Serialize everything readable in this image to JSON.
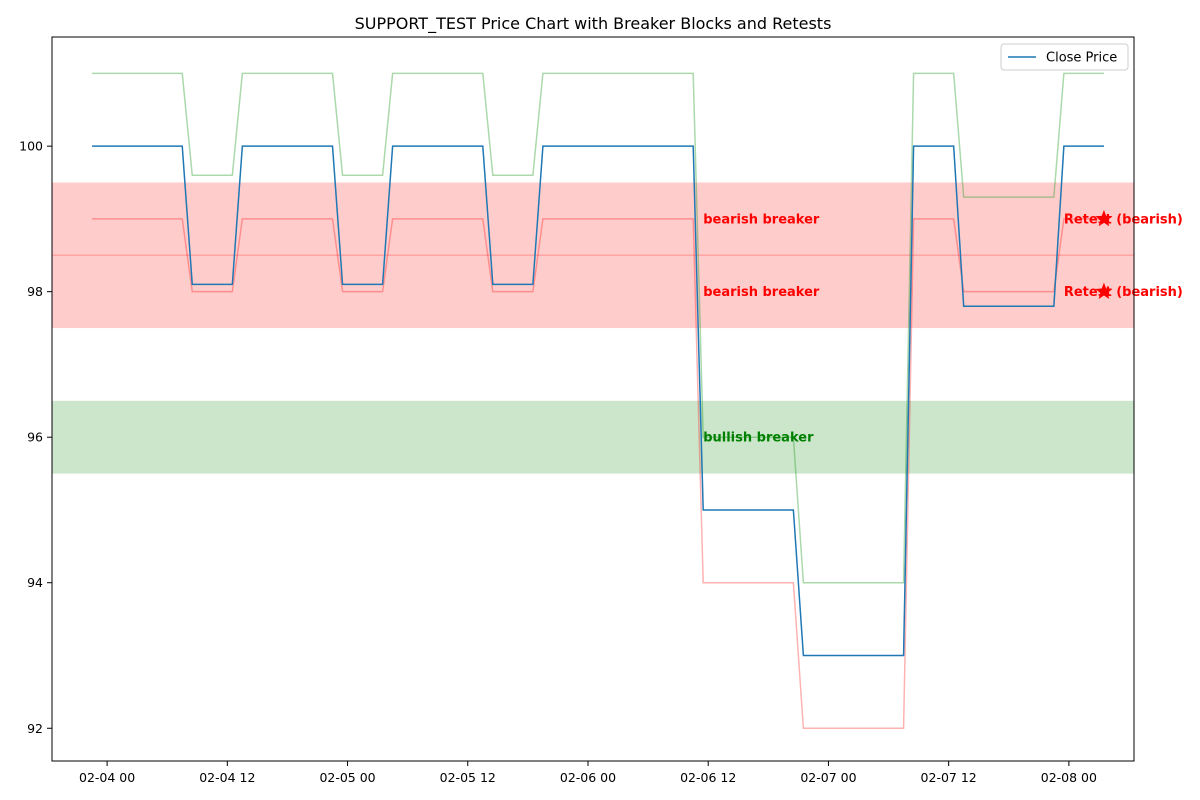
{
  "chart_data": {
    "type": "line",
    "title": "SUPPORT_TEST Price Chart with Breaker Blocks and Retests",
    "xlabel": "",
    "ylabel": "",
    "xlim": [
      "2024-02-03T18:30",
      "2024-02-08T06:30"
    ],
    "ylim": [
      91.55,
      101.5
    ],
    "x_ticks": [
      {
        "t": "2024-02-04T00:00",
        "label": "02-04 00"
      },
      {
        "t": "2024-02-04T12:00",
        "label": "02-04 12"
      },
      {
        "t": "2024-02-05T00:00",
        "label": "02-05 00"
      },
      {
        "t": "2024-02-05T12:00",
        "label": "02-05 12"
      },
      {
        "t": "2024-02-06T00:00",
        "label": "02-06 00"
      },
      {
        "t": "2024-02-06T12:00",
        "label": "02-06 12"
      },
      {
        "t": "2024-02-07T00:00",
        "label": "02-07 00"
      },
      {
        "t": "2024-02-07T12:00",
        "label": "02-07 12"
      },
      {
        "t": "2024-02-08T00:00",
        "label": "02-08 00"
      }
    ],
    "y_ticks": [
      92,
      94,
      96,
      98,
      100
    ],
    "grid": false,
    "legend": {
      "position": "top-right",
      "entries": [
        "Close Price"
      ]
    },
    "zones": [
      {
        "kind": "bearish",
        "y0": 97.5,
        "y1": 99.5,
        "color": "#ff0000",
        "opacity": 0.2
      },
      {
        "kind": "bullish",
        "y0": 95.5,
        "y1": 96.5,
        "color": "#008000",
        "opacity": 0.2
      }
    ],
    "level_lines": [
      {
        "y": 98.5,
        "color": "#ff0000",
        "opacity": 0.2
      }
    ],
    "series": [
      {
        "name": "Close Price",
        "color": "#1f77b4",
        "width": 1.5,
        "opacity": 1,
        "points": [
          [
            "2024-02-03T22:30",
            100
          ],
          [
            "2024-02-04T07:30",
            100
          ],
          [
            "2024-02-04T08:30",
            98.1
          ],
          [
            "2024-02-04T12:30",
            98.1
          ],
          [
            "2024-02-04T13:30",
            100
          ],
          [
            "2024-02-04T22:30",
            100
          ],
          [
            "2024-02-04T23:30",
            98.1
          ],
          [
            "2024-02-05T03:30",
            98.1
          ],
          [
            "2024-02-05T04:30",
            100
          ],
          [
            "2024-02-05T13:30",
            100
          ],
          [
            "2024-02-05T14:30",
            98.1
          ],
          [
            "2024-02-05T18:30",
            98.1
          ],
          [
            "2024-02-05T19:30",
            100
          ],
          [
            "2024-02-06T10:30",
            100
          ],
          [
            "2024-02-06T11:30",
            95
          ],
          [
            "2024-02-06T20:30",
            95
          ],
          [
            "2024-02-06T21:30",
            93
          ],
          [
            "2024-02-07T07:30",
            93
          ],
          [
            "2024-02-07T08:30",
            100
          ],
          [
            "2024-02-07T12:30",
            100
          ],
          [
            "2024-02-07T13:30",
            97.8
          ],
          [
            "2024-02-07T22:30",
            97.8
          ],
          [
            "2024-02-07T23:30",
            100
          ],
          [
            "2024-02-08T03:30",
            100
          ]
        ]
      },
      {
        "name": "",
        "color": "#2ca02c",
        "width": 1.5,
        "opacity": 0.4,
        "points": [
          [
            "2024-02-03T22:30",
            101
          ],
          [
            "2024-02-04T07:30",
            101
          ],
          [
            "2024-02-04T08:30",
            99.6
          ],
          [
            "2024-02-04T12:30",
            99.6
          ],
          [
            "2024-02-04T13:30",
            101
          ],
          [
            "2024-02-04T22:30",
            101
          ],
          [
            "2024-02-04T23:30",
            99.6
          ],
          [
            "2024-02-05T03:30",
            99.6
          ],
          [
            "2024-02-05T04:30",
            101
          ],
          [
            "2024-02-05T13:30",
            101
          ],
          [
            "2024-02-05T14:30",
            99.6
          ],
          [
            "2024-02-05T18:30",
            99.6
          ],
          [
            "2024-02-05T19:30",
            101
          ],
          [
            "2024-02-06T10:30",
            101
          ],
          [
            "2024-02-06T11:30",
            96
          ],
          [
            "2024-02-06T20:30",
            96
          ],
          [
            "2024-02-06T21:30",
            94
          ],
          [
            "2024-02-07T07:30",
            94
          ],
          [
            "2024-02-07T08:30",
            101
          ],
          [
            "2024-02-07T12:30",
            101
          ],
          [
            "2024-02-07T13:30",
            99.3
          ],
          [
            "2024-02-07T22:30",
            99.3
          ],
          [
            "2024-02-07T23:30",
            101
          ],
          [
            "2024-02-08T03:30",
            101
          ]
        ]
      },
      {
        "name": "",
        "color": "#ff0000",
        "width": 1.5,
        "opacity": 0.3,
        "points": [
          [
            "2024-02-03T22:30",
            99
          ],
          [
            "2024-02-04T07:30",
            99
          ],
          [
            "2024-02-04T08:30",
            98
          ],
          [
            "2024-02-04T12:30",
            98
          ],
          [
            "2024-02-04T13:30",
            99
          ],
          [
            "2024-02-04T22:30",
            99
          ],
          [
            "2024-02-04T23:30",
            98
          ],
          [
            "2024-02-05T03:30",
            98
          ],
          [
            "2024-02-05T04:30",
            99
          ],
          [
            "2024-02-05T13:30",
            99
          ],
          [
            "2024-02-05T14:30",
            98
          ],
          [
            "2024-02-05T18:30",
            98
          ],
          [
            "2024-02-05T19:30",
            99
          ],
          [
            "2024-02-06T10:30",
            99
          ],
          [
            "2024-02-06T11:30",
            94
          ],
          [
            "2024-02-06T20:30",
            94
          ],
          [
            "2024-02-06T21:30",
            92
          ],
          [
            "2024-02-07T07:30",
            92
          ],
          [
            "2024-02-07T08:30",
            99
          ],
          [
            "2024-02-07T12:30",
            99
          ],
          [
            "2024-02-07T13:30",
            98
          ],
          [
            "2024-02-07T22:30",
            98
          ],
          [
            "2024-02-07T23:30",
            99
          ],
          [
            "2024-02-08T03:30",
            99
          ]
        ]
      }
    ],
    "annotations": [
      {
        "text": "bearish breaker",
        "x": "2024-02-06T11:30",
        "y": 99,
        "color": "#ff0000"
      },
      {
        "text": "bearish breaker",
        "x": "2024-02-06T11:30",
        "y": 98,
        "color": "#ff0000"
      },
      {
        "text": "bullish breaker",
        "x": "2024-02-06T11:30",
        "y": 96,
        "color": "#008000"
      },
      {
        "text": "Retest (bearish)",
        "x": "2024-02-07T23:30",
        "y": 99,
        "color": "#ff0000"
      },
      {
        "text": "Retest (bearish)",
        "x": "2024-02-07T23:30",
        "y": 98,
        "color": "#ff0000"
      }
    ],
    "markers": [
      {
        "shape": "star",
        "x": "2024-02-08T03:30",
        "y": 99,
        "color": "#ff0000"
      },
      {
        "shape": "star",
        "x": "2024-02-08T03:30",
        "y": 98,
        "color": "#ff0000"
      }
    ]
  }
}
